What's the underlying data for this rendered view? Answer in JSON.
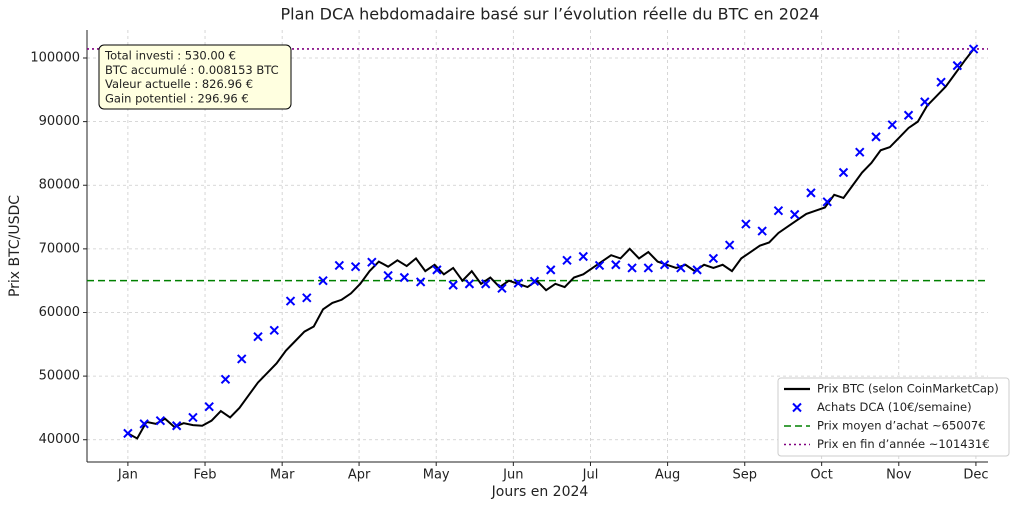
{
  "chart_data": {
    "type": "line",
    "title": "Plan DCA hebdomadaire basé sur l’évolution réelle du BTC en 2024",
    "x_label": "Jours en 2024",
    "y_label": "Prix BTC/USDC",
    "xlim": [
      -17.6,
      370.2
    ],
    "ylim": [
      36500,
      104400
    ],
    "xticks": [
      {
        "value": 0,
        "label": "Jan"
      },
      {
        "value": 33.2,
        "label": "Feb"
      },
      {
        "value": 66.4,
        "label": "Mar"
      },
      {
        "value": 99.5,
        "label": "Apr"
      },
      {
        "value": 132.7,
        "label": "May"
      },
      {
        "value": 165.9,
        "label": "Jun"
      },
      {
        "value": 199.1,
        "label": "Jul"
      },
      {
        "value": 232.3,
        "label": "Aug"
      },
      {
        "value": 265.5,
        "label": "Sep"
      },
      {
        "value": 298.6,
        "label": "Oct"
      },
      {
        "value": 331.8,
        "label": "Nov"
      },
      {
        "value": 365,
        "label": "Dec"
      }
    ],
    "yticks": [
      40000,
      50000,
      60000,
      70000,
      80000,
      90000,
      100000
    ],
    "grid": true,
    "legend_position": "lower right",
    "series": [
      {
        "name": "Prix BTC (selon CoinMarketCap)",
        "type": "line",
        "color": "#000000",
        "x": [
          0,
          4,
          8,
          12,
          16,
          20,
          24,
          28,
          32,
          36,
          40,
          44,
          48,
          52,
          56,
          60,
          64,
          68,
          72,
          76,
          80,
          84,
          88,
          92,
          96,
          100,
          104,
          108,
          112,
          116,
          120,
          124,
          128,
          132,
          136,
          140,
          144,
          148,
          152,
          156,
          160,
          164,
          168,
          172,
          176,
          180,
          184,
          188,
          192,
          196,
          200,
          204,
          208,
          212,
          216,
          220,
          224,
          228,
          232,
          236,
          240,
          244,
          248,
          252,
          256,
          260,
          264,
          268,
          272,
          276,
          280,
          284,
          288,
          292,
          296,
          300,
          304,
          308,
          312,
          316,
          320,
          324,
          328,
          332,
          336,
          340,
          344,
          348,
          352,
          356,
          360,
          364
        ],
        "values": [
          41000,
          40200,
          42800,
          42500,
          43300,
          42000,
          42600,
          42300,
          42200,
          43000,
          44500,
          43500,
          45000,
          47000,
          49000,
          50500,
          52000,
          54000,
          55500,
          57000,
          57800,
          60500,
          61500,
          62000,
          63000,
          64500,
          66500,
          68000,
          67200,
          68200,
          67300,
          68500,
          66500,
          67500,
          66000,
          67000,
          65000,
          66500,
          64500,
          65500,
          64000,
          65000,
          64500,
          64000,
          65000,
          63500,
          64500,
          64000,
          65500,
          66000,
          67000,
          68000,
          69000,
          68500,
          70000,
          68500,
          69500,
          68000,
          67500,
          67000,
          67500,
          66500,
          67500,
          67000,
          67500,
          66500,
          68500,
          69500,
          70500,
          71000,
          72500,
          73500,
          74500,
          75500,
          76000,
          76500,
          78500,
          78000,
          80000,
          82000,
          83500,
          85500,
          86000,
          87500,
          89000,
          90000,
          92500,
          94000,
          95500,
          97500,
          99500,
          101400
        ]
      },
      {
        "name": "Achats DCA (10€/semaine)",
        "type": "scatter",
        "color": "#0000ff",
        "x": [
          0,
          7,
          14,
          21,
          28,
          35,
          42,
          49,
          56,
          63,
          70,
          77,
          84,
          91,
          98,
          105,
          112,
          119,
          126,
          133,
          140,
          147,
          154,
          161,
          168,
          175,
          182,
          189,
          196,
          203,
          210,
          217,
          224,
          231,
          238,
          245,
          252,
          259,
          266,
          273,
          280,
          287,
          294,
          301,
          308,
          315,
          322,
          329,
          336,
          343,
          350,
          357,
          364
        ],
        "values": [
          41000,
          42500,
          43000,
          42200,
          43500,
          45200,
          49500,
          52700,
          56200,
          57200,
          61800,
          62300,
          65000,
          67400,
          67200,
          67900,
          65800,
          65500,
          64800,
          66700,
          64300,
          64500,
          64500,
          63800,
          64600,
          64900,
          66700,
          68200,
          68800,
          67400,
          67500,
          67000,
          67000,
          67500,
          67000,
          66700,
          68500,
          70600,
          73900,
          72800,
          76000,
          75400,
          78800,
          77400,
          82000,
          85200,
          87600,
          89500,
          91000,
          93100,
          96200,
          98800,
          101400
        ]
      }
    ],
    "hlines": [
      {
        "name": "Prix moyen d’achat ~65007€",
        "value": 65007,
        "color": "#008000",
        "style": "dashed"
      },
      {
        "name": "Prix en fin d’année ~101431€",
        "value": 101431,
        "color": "#800080",
        "style": "dotted"
      }
    ],
    "annotation": [
      "Total investi : 530.00 €",
      "BTC accumulé : 0.008153 BTC",
      "Valeur actuelle : 826.96 €",
      "Gain potentiel : 296.96 €"
    ]
  }
}
